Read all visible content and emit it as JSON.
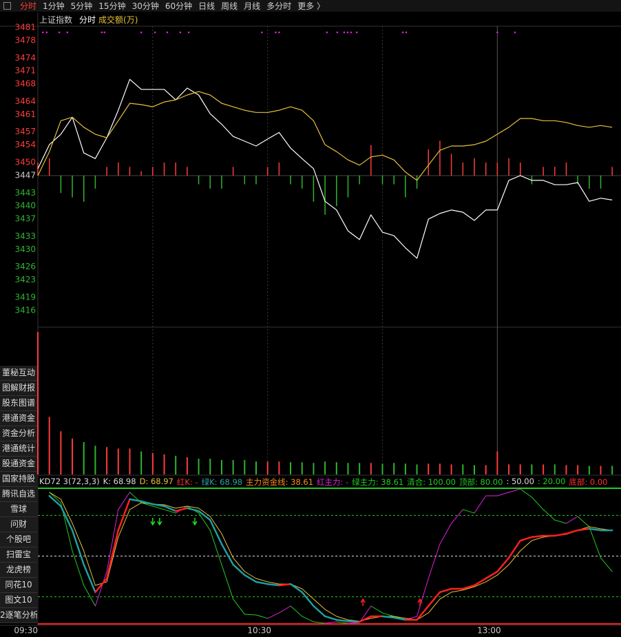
{
  "tabs": [
    "分时",
    "1分钟",
    "5分钟",
    "15分钟",
    "30分钟",
    "60分钟",
    "日线",
    "周线",
    "月线",
    "多分时",
    "更多 〉"
  ],
  "subheader": [
    "上证指数",
    "分时",
    "成交额(万)"
  ],
  "sidebar": [
    "董秘互动",
    "图解财报",
    "股东图谱",
    "港通资金",
    "资金分析",
    "港通统计",
    "股通资金",
    "国家持股",
    "腾讯自选",
    "雪球",
    "问财",
    "个股吧",
    "扫雷宝",
    "龙虎榜",
    "同花10",
    "图文10",
    "2逐笔分析"
  ],
  "chart_data": [
    {
      "type": "line",
      "x": [
        0,
        3,
        6,
        9,
        12,
        15,
        18,
        21,
        24,
        27,
        30,
        33,
        36,
        39,
        42,
        45,
        48,
        51,
        54,
        57,
        60,
        63,
        66,
        69,
        72,
        75,
        78,
        81,
        84,
        87,
        90,
        93,
        96,
        99,
        102,
        105,
        108,
        111,
        114,
        117,
        120,
        123,
        126,
        129,
        132,
        135,
        138,
        141,
        144,
        147,
        150
      ],
      "xlim": [
        0,
        152.3
      ],
      "ylim": [
        3412.2,
        3481
      ],
      "yticks": [
        3481,
        3478,
        3474,
        3471,
        3468,
        3464,
        3461,
        3457,
        3454,
        3450,
        3447,
        3443,
        3440,
        3437,
        3433,
        3430,
        3426,
        3423,
        3419,
        3416
      ],
      "base": 3447,
      "up_color": "#ff3b3b",
      "down_color": "#2fb52f",
      "base_color": "#cccccc",
      "xgrid": [
        30,
        60,
        90
      ],
      "session_break": 120,
      "series": [
        {
          "color": "#ffffff",
          "values": [
            3448.6,
            3454.1,
            3456.5,
            3460.4,
            3452.2,
            3450.9,
            3455.7,
            3462.0,
            3469.1,
            3466.8,
            3466.8,
            3466.8,
            3464.4,
            3467.1,
            3465.5,
            3461.2,
            3458.8,
            3456.0,
            3454.9,
            3453.8,
            3455.4,
            3456.9,
            3453.3,
            3450.9,
            3448.6,
            3441.1,
            3439.1,
            3434.3,
            3432.3,
            3438.0,
            3434.0,
            3433.2,
            3430.4,
            3428.0,
            3437.0,
            3438.3,
            3439.1,
            3438.6,
            3436.7,
            3439.1,
            3439.1,
            3445.9,
            3447.0,
            3445.9,
            3445.9,
            3444.9,
            3444.9,
            3445.4,
            3441.1,
            3441.8,
            3441.4
          ]
        },
        {
          "color": "#e8c13a",
          "values": [
            3447.0,
            3452.5,
            3459.6,
            3460.4,
            3458.1,
            3456.5,
            3455.7,
            3459.6,
            3463.6,
            3463.3,
            3462.8,
            3463.9,
            3464.4,
            3465.5,
            3466.3,
            3465.5,
            3463.6,
            3462.8,
            3462.0,
            3461.5,
            3461.5,
            3462.0,
            3462.8,
            3462.0,
            3459.6,
            3454.1,
            3452.5,
            3450.6,
            3449.4,
            3451.3,
            3451.7,
            3450.6,
            3447.8,
            3445.9,
            3449.4,
            3452.8,
            3453.8,
            3453.8,
            3454.1,
            3454.9,
            3456.5,
            3458.1,
            3460.1,
            3460.1,
            3459.6,
            3459.6,
            3459.2,
            3458.5,
            3458.1,
            3458.5,
            3458.1
          ]
        }
      ],
      "bars": {
        "values": [
          3,
          4,
          -4,
          -5,
          -6,
          -3,
          2,
          3,
          2,
          1,
          2,
          3,
          3,
          2,
          -2,
          -3,
          -3,
          2,
          -2,
          -2,
          2,
          3,
          -2,
          -3,
          -6,
          -9,
          -7,
          -5,
          -2,
          7,
          -2,
          -2,
          -5,
          -3,
          6,
          8,
          5,
          3,
          4,
          3,
          3,
          4,
          3,
          -2,
          2,
          2,
          3,
          -2,
          -3,
          -3,
          2
        ]
      },
      "signal_color": "#e020e0",
      "signal_x": [
        1.3,
        2.3,
        5.6,
        7.7,
        16.7,
        17.4,
        27,
        30.6,
        33.8,
        37.2,
        39.4,
        58.5,
        62.1,
        63,
        75.5,
        78.2,
        80,
        80.9,
        81.8,
        83.3,
        95.3,
        96.2,
        120,
        124.6
      ]
    },
    {
      "type": "bar",
      "ylim": [
        0,
        200
      ],
      "up_color": "#ff3b3b",
      "down_color": "#2fb52f",
      "values": [
        198,
        80,
        60,
        50,
        45,
        40,
        38,
        36,
        36,
        32,
        30,
        28,
        26,
        24,
        22,
        22,
        20,
        20,
        20,
        18,
        18,
        18,
        17,
        17,
        16,
        18,
        17,
        16,
        16,
        16,
        15,
        16,
        15,
        14,
        15,
        15,
        14,
        14,
        13,
        13,
        32,
        14,
        14,
        14,
        14,
        14,
        13,
        13,
        12,
        12,
        12
      ]
    },
    {
      "type": "line",
      "xticks": [
        {
          "value": 0,
          "label": "09:30"
        },
        {
          "value": 60,
          "label": "10:30"
        },
        {
          "value": 120,
          "label": "13:00"
        }
      ],
      "ylim": [
        0,
        100
      ],
      "yticks": [
        100,
        80,
        50,
        20,
        0
      ],
      "ytick_colors": [
        "#22cc22",
        "#22cc22",
        "#dddddd",
        "#22cc22",
        "#ff2222"
      ],
      "legend": [
        {
          "text": "KD72 3(72,3,3)",
          "color": "#dddddd"
        },
        {
          "text": "K: 68.98",
          "color": "#dddddd"
        },
        {
          "text": "D: 68.97",
          "color": "#e8c13a"
        },
        {
          "text": "红K: -",
          "color": "#ff3333"
        },
        {
          "text": "绿K: 68.98",
          "color": "#2aa5a5"
        },
        {
          "text": "主力资金线: 38.61",
          "color": "#ff8c1a"
        },
        {
          "text": "红主力: -",
          "color": "#e020e0"
        },
        {
          "text": "绿主力: 38.61",
          "color": "#22cc22"
        },
        {
          "text": "清合: 100.00",
          "color": "#22cc22"
        },
        {
          "text": "顶部: 80.00",
          "color": "#22cc22"
        },
        {
          "text": ": 50.00",
          "color": "#dddddd"
        },
        {
          "text": ": 20.00",
          "color": "#22cc22"
        },
        {
          "text": "底部: 0.00",
          "color": "#ff3333"
        }
      ],
      "series": [
        {
          "up_color": "#e020e0",
          "down_color": "#22cc22",
          "width": 1,
          "values": [
            null,
            97.0,
            89.3,
            53.8,
            28.4,
            13.2,
            38.6,
            84.3,
            97.0,
            89.3,
            86.8,
            84.3,
            81.7,
            86.8,
            81.7,
            69.0,
            43.7,
            18.3,
            7.1,
            6.6,
            4.1,
            8.1,
            13.2,
            5.6,
            1.5,
            0.5,
            1.5,
            0.5,
            1.0,
            13.2,
            8.1,
            5.6,
            3.0,
            5.6,
            33.5,
            58.9,
            74.1,
            84.3,
            81.7,
            94.4,
            94.4,
            97.0,
            99.5,
            93.4,
            84.3,
            76.6,
            74.1,
            79.2,
            71.6,
            48.7,
            38.61
          ]
        },
        {
          "color": "#e8c13a",
          "width": 1,
          "values": [
            null,
            97.0,
            91.9,
            74.1,
            53.8,
            28.4,
            31.0,
            64.0,
            84.3,
            89.3,
            88.3,
            87.8,
            85.3,
            86.8,
            85.3,
            79.2,
            66.5,
            48.7,
            38.6,
            33.5,
            31.0,
            29.4,
            29.4,
            25.9,
            18.3,
            10.7,
            5.6,
            3.0,
            2.0,
            4.1,
            5.6,
            5.6,
            4.1,
            3.0,
            8.1,
            18.3,
            23.4,
            24.9,
            27.4,
            31.0,
            36.0,
            43.7,
            53.8,
            61.4,
            64.0,
            65.0,
            66.0,
            69.0,
            71.6,
            70.1,
            68.97
          ]
        },
        {
          "up_color": "#ff2020",
          "down_color": "#1f9fa0",
          "width": 2.5,
          "values": [
            null,
            94.4,
            86.8,
            69.0,
            43.7,
            23.4,
            33.5,
            69.0,
            91.9,
            90.4,
            88.3,
            86.8,
            83.2,
            85.3,
            83.2,
            76.6,
            58.9,
            43.7,
            36.0,
            31.0,
            29.4,
            28.4,
            29.4,
            23.4,
            13.2,
            5.6,
            3.0,
            2.0,
            1.5,
            5.6,
            5.6,
            4.6,
            3.0,
            3.0,
            13.2,
            23.4,
            25.9,
            25.9,
            28.4,
            33.5,
            38.6,
            48.7,
            61.4,
            64.0,
            65.0,
            65.0,
            66.5,
            69.0,
            70.1,
            69.0,
            68.98
          ]
        }
      ],
      "arrow_up_color": "#ff2020",
      "arrow_down_color": "#22dd22",
      "arrows_down_x": [
        30.0,
        31.8,
        41.0
      ],
      "arrows_up_x": [
        84.9,
        99.8
      ]
    }
  ]
}
